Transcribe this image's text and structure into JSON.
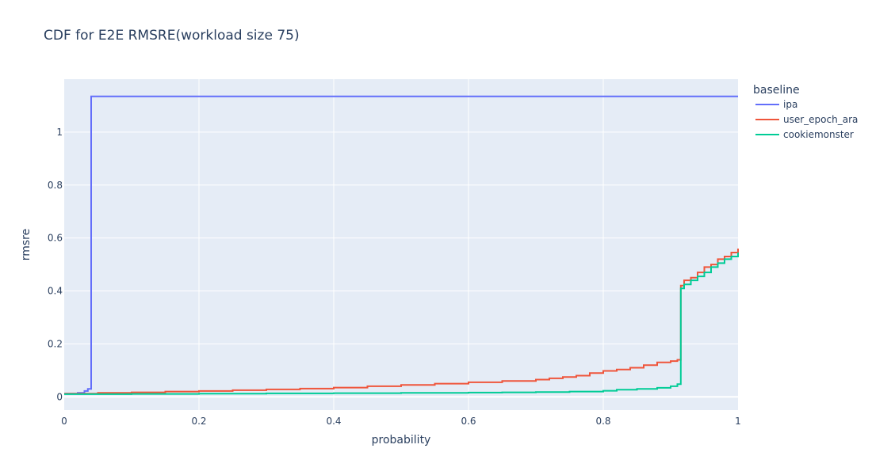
{
  "chart_data": {
    "type": "line",
    "title": "CDF for E2E RMSRE(workload size 75)",
    "xlabel": "probability",
    "ylabel": "rmsre",
    "xlim": [
      0,
      1
    ],
    "ylim": [
      -0.05,
      1.2
    ],
    "xticks": [
      0,
      0.2,
      0.4,
      0.6,
      0.8,
      1
    ],
    "xtick_labels": [
      "0",
      "0.2",
      "0.4",
      "0.6",
      "0.8",
      "1"
    ],
    "yticks": [
      0,
      0.2,
      0.4,
      0.6,
      0.8,
      1
    ],
    "ytick_labels": [
      "0",
      "0.2",
      "0.4",
      "0.6",
      "0.8",
      "1"
    ],
    "grid": true,
    "legend_title": "baseline",
    "legend_position": "right",
    "series": [
      {
        "name": "ipa",
        "color": "#636efa",
        "shape": "step",
        "x": [
          0,
          0.02,
          0.03,
          0.035,
          0.04,
          0.04,
          1.0
        ],
        "y": [
          0.012,
          0.015,
          0.022,
          0.03,
          0.035,
          1.135,
          1.135
        ]
      },
      {
        "name": "user_epoch_ara",
        "color": "#EF553B",
        "shape": "step",
        "x": [
          0,
          0.05,
          0.1,
          0.15,
          0.2,
          0.25,
          0.3,
          0.35,
          0.4,
          0.45,
          0.5,
          0.55,
          0.6,
          0.65,
          0.7,
          0.72,
          0.74,
          0.76,
          0.78,
          0.8,
          0.82,
          0.84,
          0.86,
          0.88,
          0.9,
          0.91,
          0.915,
          0.915,
          0.92,
          0.93,
          0.94,
          0.95,
          0.96,
          0.97,
          0.98,
          0.99,
          1.0
        ],
        "y": [
          0.012,
          0.015,
          0.017,
          0.02,
          0.022,
          0.025,
          0.028,
          0.031,
          0.035,
          0.04,
          0.045,
          0.05,
          0.055,
          0.06,
          0.065,
          0.07,
          0.075,
          0.08,
          0.09,
          0.098,
          0.103,
          0.11,
          0.12,
          0.13,
          0.135,
          0.14,
          0.14,
          0.42,
          0.44,
          0.45,
          0.47,
          0.49,
          0.5,
          0.52,
          0.53,
          0.545,
          0.56
        ]
      },
      {
        "name": "cookiemonster",
        "color": "#00cc96",
        "shape": "step",
        "x": [
          0,
          0.1,
          0.2,
          0.3,
          0.4,
          0.5,
          0.6,
          0.65,
          0.7,
          0.75,
          0.8,
          0.82,
          0.85,
          0.88,
          0.9,
          0.91,
          0.915,
          0.915,
          0.92,
          0.93,
          0.94,
          0.95,
          0.96,
          0.97,
          0.98,
          0.99,
          1.0
        ],
        "y": [
          0.01,
          0.011,
          0.012,
          0.013,
          0.014,
          0.015,
          0.016,
          0.017,
          0.018,
          0.02,
          0.023,
          0.027,
          0.03,
          0.034,
          0.04,
          0.048,
          0.055,
          0.41,
          0.425,
          0.44,
          0.455,
          0.47,
          0.49,
          0.505,
          0.52,
          0.53,
          0.545
        ]
      }
    ]
  }
}
